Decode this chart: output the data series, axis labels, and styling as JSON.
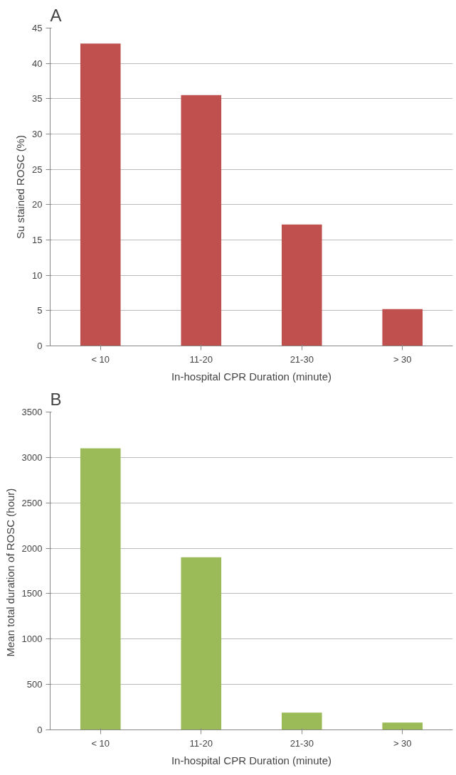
{
  "chart_data": [
    {
      "type": "bar",
      "title": "A",
      "xlabel": "In-hospital CPR Duration (minute)",
      "ylabel": "Su stained ROSC (%)",
      "categories": [
        "< 10",
        "11-20",
        "21-30",
        "> 30"
      ],
      "values": [
        42.8,
        35.5,
        17.2,
        5.2
      ],
      "color": "#c0504d",
      "ylim": [
        0,
        45
      ],
      "yticks": [
        0,
        5,
        10,
        15,
        20,
        25,
        30,
        35,
        40,
        45
      ],
      "grid": "y"
    },
    {
      "type": "bar",
      "title": "B",
      "xlabel": "In-hospital CPR Duration (minute)",
      "ylabel": "Mean total duration of ROSC  (hour)",
      "categories": [
        "< 10",
        "11-20",
        "21-30",
        "> 30"
      ],
      "values": [
        3100,
        1900,
        190,
        80
      ],
      "color": "#9bbb59",
      "ylim": [
        0,
        3500
      ],
      "yticks": [
        0,
        500,
        1000,
        1500,
        2000,
        2500,
        3000,
        3500
      ],
      "grid": "y"
    }
  ]
}
